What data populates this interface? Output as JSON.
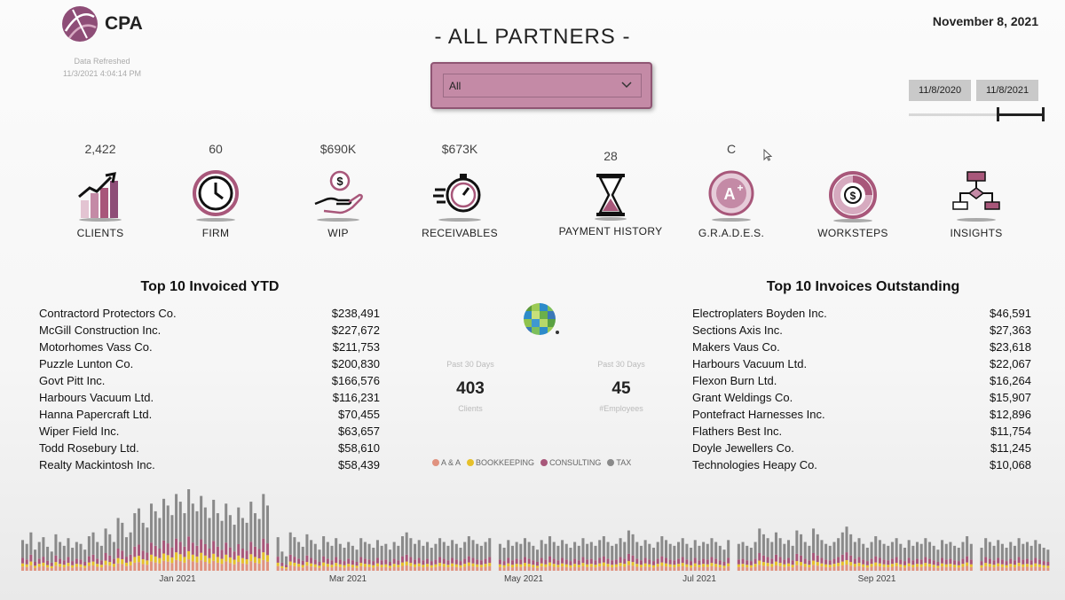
{
  "header": {
    "logo_text": "CPA",
    "refresh_label": "Data Refreshed",
    "refresh_time": "11/3/2021 4:04:14 PM",
    "title": "- ALL PARTNERS -",
    "date": "November 8, 2021"
  },
  "filter": {
    "selected": "All"
  },
  "date_range": {
    "start": "11/8/2020",
    "end": "11/8/2021"
  },
  "kpis": [
    {
      "value": "2,422",
      "label": "CLIENTS",
      "icon": "growth-chart-icon"
    },
    {
      "value": "60",
      "label": "FIRM",
      "icon": "clock-icon"
    },
    {
      "value": "$690K",
      "label": "WIP",
      "icon": "money-hand-icon"
    },
    {
      "value": "$673K",
      "label": "RECEIVABLES",
      "icon": "stopwatch-icon"
    },
    {
      "value": "28",
      "label": "PAYMENT HISTORY",
      "icon": "hourglass-icon"
    },
    {
      "value": "C",
      "label": "G.R.A.D.E.S.",
      "icon": "grade-badge-icon"
    },
    {
      "value": "",
      "label": "WORKSTEPS",
      "icon": "dollar-donut-icon"
    },
    {
      "value": "",
      "label": "INSIGHTS",
      "icon": "flowchart-icon"
    }
  ],
  "top_invoiced": {
    "title": "Top 10 Invoiced YTD",
    "rows": [
      {
        "name": "Contractord Protectors Co.",
        "amount": "$238,491"
      },
      {
        "name": "McGill Construction Inc.",
        "amount": "$227,672"
      },
      {
        "name": "Motorhomes Vass Co.",
        "amount": "$211,753"
      },
      {
        "name": "Puzzle Lunton Co.",
        "amount": "$200,830"
      },
      {
        "name": "Govt Pitt Inc.",
        "amount": "$166,576"
      },
      {
        "name": "Harbours Vacuum Ltd.",
        "amount": "$116,231"
      },
      {
        "name": "Hanna Papercraft Ltd.",
        "amount": "$70,455"
      },
      {
        "name": "Wiper Field Inc.",
        "amount": "$63,657"
      },
      {
        "name": "Todd Rosebury Ltd.",
        "amount": "$58,610"
      },
      {
        "name": "Realty Mackintosh Inc.",
        "amount": "$58,439"
      }
    ]
  },
  "top_outstanding": {
    "title": "Top 10 Invoices Outstanding",
    "rows": [
      {
        "name": "Electroplaters Boyden Inc.",
        "amount": "$46,591"
      },
      {
        "name": "Sections Axis Inc.",
        "amount": "$27,363"
      },
      {
        "name": "Makers Vaus Co.",
        "amount": "$23,618"
      },
      {
        "name": "Harbours Vacuum Ltd.",
        "amount": "$22,067"
      },
      {
        "name": "Flexon Burn Ltd.",
        "amount": "$16,264"
      },
      {
        "name": "Grant Weldings Co.",
        "amount": "$15,907"
      },
      {
        "name": "Pontefract Harnesses Inc.",
        "amount": "$12,896"
      },
      {
        "name": "Flathers Best Inc.",
        "amount": "$11,754"
      },
      {
        "name": "Doyle Jewellers Co.",
        "amount": "$11,245"
      },
      {
        "name": "Technologies Heapy Co.",
        "amount": "$10,068"
      }
    ]
  },
  "stats": {
    "clients": {
      "period": "Past 30 Days",
      "value": "403",
      "label": "Clients"
    },
    "employees": {
      "period": "Past 30 Days",
      "value": "45",
      "label": "#Employees"
    }
  },
  "legend": [
    {
      "label": "A & A",
      "color": "#e0927f"
    },
    {
      "label": "BOOKKEEPING",
      "color": "#e6c02a"
    },
    {
      "label": "CONSULTING",
      "color": "#a8577a"
    },
    {
      "label": "TAX",
      "color": "#8a8a8a"
    }
  ],
  "colors": {
    "accent": "#a8577a",
    "accent_light": "#c48aa6"
  },
  "chart_data": {
    "type": "bar",
    "stacked": true,
    "x_tick_labels": [
      "Jan 2021",
      "Mar 2021",
      "May 2021",
      "Jul 2021",
      "Sep 2021"
    ],
    "series": [
      {
        "name": "A & A",
        "color": "#e0927f"
      },
      {
        "name": "BOOKKEEPING",
        "color": "#e6c02a"
      },
      {
        "name": "CONSULTING",
        "color": "#a8577a"
      },
      {
        "name": "TAX",
        "color": "#8a8a8a"
      }
    ],
    "daily_totals": [
      32,
      28,
      40,
      22,
      30,
      35,
      25,
      20,
      38,
      30,
      26,
      34,
      24,
      30,
      28,
      22,
      36,
      40,
      30,
      26,
      44,
      38,
      30,
      55,
      50,
      35,
      40,
      60,
      65,
      50,
      45,
      70,
      62,
      55,
      75,
      68,
      58,
      80,
      72,
      60,
      85,
      70,
      62,
      78,
      66,
      55,
      74,
      60,
      52,
      70,
      58,
      48,
      66,
      55,
      50,
      72,
      60,
      54,
      80,
      68,
      35,
      20,
      15,
      40,
      35,
      30,
      25,
      38,
      32,
      28,
      22,
      36,
      30,
      26,
      34,
      28,
      24,
      30,
      26,
      22,
      34,
      30,
      28,
      24,
      32,
      26,
      28,
      22,
      30,
      26,
      36,
      40,
      34,
      28,
      32,
      26,
      30,
      24,
      28,
      34,
      30,
      26,
      32,
      28,
      24,
      30,
      36,
      32,
      28,
      26,
      30,
      34,
      28,
      24,
      32,
      26,
      30,
      28,
      34,
      30,
      26,
      22,
      32,
      28,
      36,
      30,
      26,
      32,
      28,
      24,
      30,
      26,
      34,
      28,
      30,
      26,
      32,
      36,
      30,
      26,
      28,
      34,
      30,
      42,
      38,
      30,
      26,
      32,
      28,
      24,
      30,
      36,
      32,
      28,
      26,
      30,
      34,
      28,
      24,
      32,
      26,
      30,
      28,
      34,
      30,
      26,
      22,
      32,
      28,
      30,
      26,
      24,
      30,
      44,
      38,
      34,
      30,
      40,
      34,
      28,
      32,
      26,
      42,
      38,
      30,
      26,
      44,
      38,
      32,
      28,
      26,
      30,
      34,
      40,
      46,
      38,
      30,
      34,
      28,
      24,
      30,
      36,
      32,
      28,
      26,
      30,
      34,
      28,
      24,
      32,
      26,
      30,
      28,
      34,
      30,
      26,
      22,
      32,
      28,
      30,
      26,
      24,
      30,
      36,
      28,
      24,
      34,
      30,
      26,
      32,
      28,
      24,
      30,
      26,
      34,
      28,
      30,
      26,
      32,
      28,
      24,
      22
    ]
  }
}
